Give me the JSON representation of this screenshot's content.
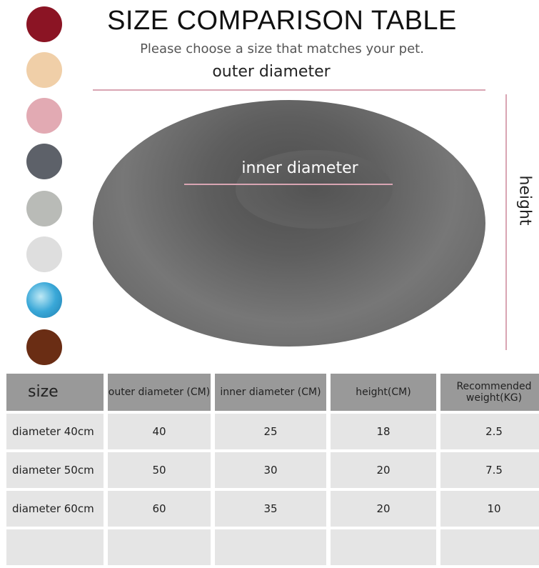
{
  "swatches": [
    {
      "name": "wine-red",
      "color": "#8b1424"
    },
    {
      "name": "peach",
      "color": "#f0cfa8"
    },
    {
      "name": "pink",
      "color": "#e2aab3"
    },
    {
      "name": "dark-grey",
      "color": "#5d6169"
    },
    {
      "name": "light-grey",
      "color": "#b9bbb7"
    },
    {
      "name": "pale-grey",
      "color": "#dedede"
    },
    {
      "name": "tie-dye-blue",
      "color": "#3aa8d8"
    },
    {
      "name": "brown",
      "color": "#6a2d14"
    }
  ],
  "title": "SIZE COMPARISON TABLE",
  "subtitle": "Please choose a size that matches your pet.",
  "labels": {
    "outer": "outer diameter",
    "inner": "inner diameter",
    "height": "height"
  },
  "table": {
    "headers": [
      "size",
      "outer diameter (CM)",
      "inner diameter (CM)",
      "height(CM)",
      "Recommended weight(KG)"
    ],
    "rows": [
      [
        "diameter 40cm",
        "40",
        "25",
        "18",
        "2.5"
      ],
      [
        "diameter 50cm",
        "50",
        "30",
        "20",
        "7.5"
      ],
      [
        "diameter 60cm",
        "60",
        "35",
        "20",
        "10"
      ]
    ]
  }
}
